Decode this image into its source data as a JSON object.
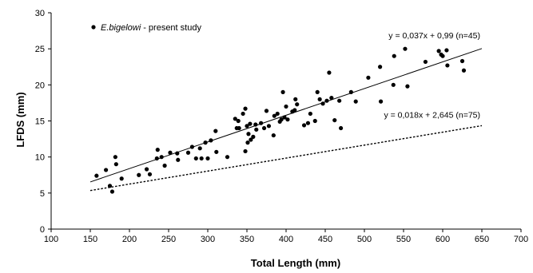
{
  "chart_data": {
    "type": "scatter",
    "xlabel": "Total Length (mm)",
    "ylabel": "LFDS (mm)",
    "xlim": [
      100,
      700
    ],
    "ylim": [
      0,
      30
    ],
    "xticks": [
      "100",
      "150",
      "200",
      "250",
      "300",
      "350",
      "400",
      "450",
      "500",
      "550",
      "600",
      "650",
      "700"
    ],
    "yticks": [
      "0",
      "5",
      "10",
      "15",
      "20",
      "25",
      "30"
    ],
    "grid": false,
    "legend": {
      "position": "top-left",
      "species": "E.bigelowi",
      "suffix": " - present study"
    },
    "series": [
      {
        "name": "E.bigelowi - present study",
        "points": [
          [
            158,
            7.4
          ],
          [
            170,
            8.2
          ],
          [
            175,
            6.0
          ],
          [
            178,
            5.2
          ],
          [
            182,
            10.0
          ],
          [
            183,
            9.0
          ],
          [
            190,
            7.0
          ],
          [
            212,
            7.5
          ],
          [
            222,
            8.3
          ],
          [
            226,
            7.6
          ],
          [
            235,
            9.8
          ],
          [
            236,
            11.0
          ],
          [
            241,
            10.0
          ],
          [
            245,
            8.8
          ],
          [
            252,
            10.6
          ],
          [
            261,
            10.5
          ],
          [
            262,
            9.6
          ],
          [
            275,
            10.6
          ],
          [
            280,
            11.4
          ],
          [
            285,
            9.8
          ],
          [
            290,
            11.2
          ],
          [
            292,
            9.8
          ],
          [
            297,
            12.0
          ],
          [
            300,
            9.8
          ],
          [
            304,
            12.3
          ],
          [
            310,
            13.6
          ],
          [
            311,
            10.7
          ],
          [
            325,
            10.0
          ],
          [
            335,
            15.3
          ],
          [
            337,
            14.0
          ],
          [
            339,
            15.0
          ],
          [
            340,
            14.0
          ],
          [
            345,
            16.0
          ],
          [
            348,
            10.8
          ],
          [
            348,
            16.7
          ],
          [
            350,
            14.3
          ],
          [
            351,
            12.0
          ],
          [
            352,
            13.2
          ],
          [
            354,
            14.6
          ],
          [
            355,
            12.4
          ],
          [
            358,
            12.8
          ],
          [
            361,
            14.5
          ],
          [
            362,
            13.8
          ],
          [
            368,
            14.7
          ],
          [
            372,
            14.0
          ],
          [
            375,
            16.4
          ],
          [
            378,
            14.3
          ],
          [
            384,
            13.0
          ],
          [
            385,
            15.7
          ],
          [
            389,
            16.0
          ],
          [
            392,
            14.9
          ],
          [
            394,
            15.2
          ],
          [
            396,
            19.0
          ],
          [
            398,
            15.5
          ],
          [
            400,
            17.0
          ],
          [
            402,
            15.2
          ],
          [
            408,
            16.3
          ],
          [
            411,
            16.5
          ],
          [
            412,
            18.0
          ],
          [
            414,
            17.3
          ],
          [
            423,
            14.4
          ],
          [
            428,
            14.7
          ],
          [
            431,
            16.0
          ],
          [
            437,
            15.0
          ],
          [
            440,
            19.0
          ],
          [
            443,
            18.0
          ],
          [
            447,
            17.4
          ],
          [
            452,
            17.8
          ],
          [
            455,
            21.7
          ],
          [
            458,
            18.2
          ],
          [
            462,
            15.1
          ],
          [
            468,
            17.8
          ],
          [
            470,
            14.0
          ],
          [
            483,
            19.0
          ],
          [
            489,
            17.7
          ],
          [
            505,
            21.0
          ],
          [
            520,
            22.5
          ],
          [
            521,
            17.7
          ],
          [
            537,
            20.0
          ],
          [
            538,
            24.0
          ],
          [
            552,
            25.0
          ],
          [
            555,
            19.8
          ],
          [
            578,
            23.2
          ],
          [
            595,
            24.7
          ],
          [
            598,
            24.2
          ],
          [
            600,
            24.0
          ],
          [
            605,
            24.8
          ],
          [
            606,
            22.7
          ],
          [
            625,
            23.3
          ],
          [
            627,
            22.0
          ]
        ]
      }
    ],
    "trendlines": [
      {
        "label": "y = 0,037x + 0,99 (n=45)",
        "slope": 0.037,
        "intercept": 0.99,
        "x_range": [
          150,
          650
        ],
        "style": "solid"
      },
      {
        "label": "y = 0,018x + 2,645 (n=75)",
        "slope": 0.018,
        "intercept": 2.645,
        "x_range": [
          150,
          650
        ],
        "style": "dashed"
      }
    ]
  }
}
